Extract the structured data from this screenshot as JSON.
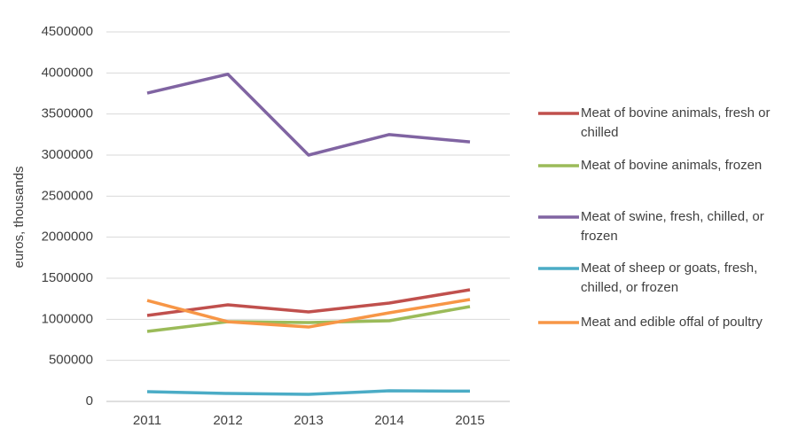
{
  "chart_data": {
    "type": "line",
    "y_label": "euros, thousands",
    "x": [
      "2011",
      "2012",
      "2013",
      "2014",
      "2015"
    ],
    "series": [
      {
        "name": "Meat of bovine animals, fresh or chilled",
        "color": "#c0504d",
        "values": [
          1047000,
          1176000,
          1090000,
          1198000,
          1360000
        ]
      },
      {
        "name": "Meat of bovine animals, frozen",
        "color": "#9bbb59",
        "values": [
          852000,
          971000,
          960000,
          982000,
          1155000
        ]
      },
      {
        "name": "Meat of swine, fresh, chilled, or frozen",
        "color": "#8064a2",
        "values": [
          3755000,
          3985000,
          3000000,
          3250000,
          3160000
        ]
      },
      {
        "name": "Meat of sheep or goats, fresh, chilled, or frozen",
        "color": "#4bacc6",
        "values": [
          119000,
          97000,
          86000,
          129000,
          125000
        ]
      },
      {
        "name": "Meat and edible offal of poultry",
        "color": "#f79646",
        "values": [
          1230000,
          970000,
          906000,
          1079000,
          1241000
        ]
      }
    ],
    "ylim": [
      0,
      4500000
    ],
    "yticks": [
      0,
      500000,
      1000000,
      1500000,
      2000000,
      2500000,
      3000000,
      3500000,
      4000000,
      4500000
    ],
    "grid": true
  }
}
